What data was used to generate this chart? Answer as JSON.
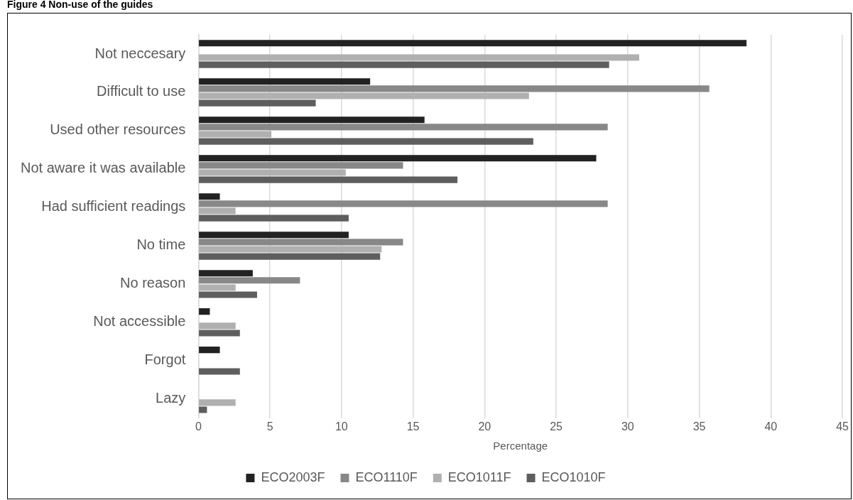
{
  "chart_data": {
    "type": "bar",
    "orientation": "horizontal",
    "title": "Figure 4 Non-use of the guides",
    "xlabel": "Percentage",
    "categories": [
      "Not neccesary",
      "Difficult to use",
      "Used other resources",
      "Not aware it was available",
      "Had sufficient readings",
      "No time",
      "No reason",
      "Not accessible",
      "Forgot",
      "Lazy"
    ],
    "series": [
      {
        "name": "ECO2003F",
        "color": "#222222",
        "values": [
          38.3,
          12.0,
          15.8,
          27.8,
          1.5,
          10.5,
          3.8,
          0.8,
          1.5,
          null
        ]
      },
      {
        "name": "ECO1110F",
        "color": "#888888",
        "values": [
          null,
          35.7,
          28.6,
          14.3,
          28.6,
          14.3,
          7.1,
          null,
          null,
          null
        ]
      },
      {
        "name": "ECO1011F",
        "color": "#b0b0b0",
        "values": [
          30.8,
          23.1,
          5.1,
          10.3,
          2.6,
          12.8,
          2.6,
          2.6,
          null,
          2.6
        ]
      },
      {
        "name": "ECO1010F",
        "color": "#5e5e5e",
        "values": [
          28.7,
          8.2,
          23.4,
          18.1,
          10.5,
          12.7,
          4.1,
          2.9,
          2.9,
          0.6
        ]
      }
    ],
    "xlim": [
      0,
      45
    ],
    "xticks": [
      0,
      5,
      10,
      15,
      20,
      25,
      30,
      35,
      40,
      45
    ],
    "grid": "x",
    "legend": "bottom"
  }
}
